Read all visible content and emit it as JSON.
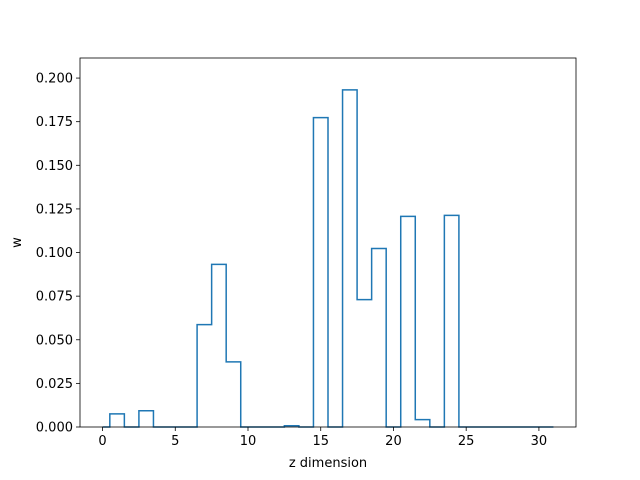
{
  "chart_data": {
    "type": "line",
    "style": "step-histogram",
    "title": "",
    "xlabel": "z dimension",
    "ylabel": "w",
    "xlim": [
      -1.55,
      32.55
    ],
    "ylim": [
      0,
      0.2115
    ],
    "xticks": [
      0,
      5,
      10,
      15,
      20,
      25,
      30
    ],
    "xtick_labels": [
      "0",
      "5",
      "10",
      "15",
      "20",
      "25",
      "30"
    ],
    "yticks": [
      0,
      0.025,
      0.05,
      0.075,
      0.1,
      0.125,
      0.15,
      0.175,
      0.2
    ],
    "ytick_labels": [
      "0.000",
      "0.025",
      "0.050",
      "0.075",
      "0.100",
      "0.125",
      "0.150",
      "0.175",
      "0.200"
    ],
    "grid": false,
    "color": "#1f77b4",
    "x": [
      0,
      1,
      2,
      3,
      4,
      5,
      6,
      7,
      8,
      9,
      10,
      11,
      12,
      13,
      14,
      15,
      16,
      17,
      18,
      19,
      20,
      21,
      22,
      23,
      24,
      25,
      26,
      27,
      28,
      29,
      30,
      31
    ],
    "values": [
      0.0,
      0.0075,
      0.0,
      0.0093,
      0.0,
      0.0,
      0.0,
      0.0587,
      0.0932,
      0.0373,
      0.0,
      0.0,
      0.0,
      0.0007,
      0.0,
      0.1773,
      0.0,
      0.1932,
      0.073,
      0.1023,
      0.0,
      0.1207,
      0.0042,
      0.0,
      0.1213,
      0.0,
      0.0,
      0.0,
      0.0,
      0.0,
      0.0,
      0.0
    ]
  }
}
